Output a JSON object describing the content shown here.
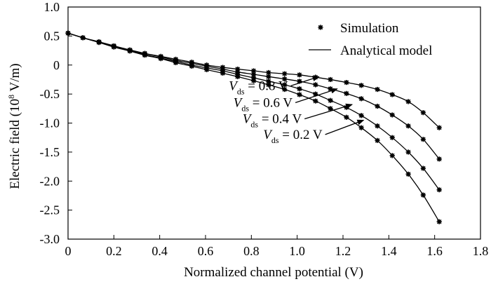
{
  "chart_data": {
    "type": "line",
    "xlabel": "Normalized channel potential (V)",
    "ylabel_parts": [
      "Electric field (10",
      "8",
      " V/m)"
    ],
    "xlim": [
      0,
      1.8
    ],
    "ylim": [
      -3.0,
      1.0
    ],
    "xticks": [
      "0",
      "0.2",
      "0.4",
      "0.6",
      "0.8",
      "1.0",
      "1.2",
      "1.4",
      "1.6",
      "1.8"
    ],
    "yticks": [
      "1.0",
      "0.5",
      "0",
      "-0.5",
      "-1.0",
      "-1.5",
      "-2.0",
      "-2.5",
      "-3.0"
    ],
    "xtick_values": [
      0,
      0.2,
      0.4,
      0.6,
      0.8,
      1.0,
      1.2,
      1.4,
      1.6,
      1.8
    ],
    "ytick_values": [
      1.0,
      0.5,
      0,
      -0.5,
      -1.0,
      -1.5,
      -2.0,
      -2.5,
      -3.0
    ],
    "grid": false,
    "legend": {
      "position": "top-right",
      "entries": [
        {
          "label": "Simulation",
          "style": "marker"
        },
        {
          "label": "Analytical model",
          "style": "line"
        }
      ]
    },
    "annotation_symbol": "V",
    "annotation_subscript": "ds",
    "series": [
      {
        "name_value": " = 0.8 V",
        "x": [
          0,
          0.065,
          0.135,
          0.2,
          0.27,
          0.335,
          0.405,
          0.47,
          0.54,
          0.605,
          0.675,
          0.74,
          0.81,
          0.875,
          0.945,
          1.01,
          1.08,
          1.145,
          1.215,
          1.28,
          1.35,
          1.415,
          1.485,
          1.55,
          1.62
        ],
        "y": [
          0.55,
          0.47,
          0.4,
          0.33,
          0.26,
          0.2,
          0.15,
          0.1,
          0.05,
          0.0,
          -0.04,
          -0.07,
          -0.1,
          -0.13,
          -0.15,
          -0.17,
          -0.21,
          -0.25,
          -0.3,
          -0.35,
          -0.42,
          -0.51,
          -0.63,
          -0.82,
          -1.08
        ]
      },
      {
        "name_value": " = 0.6 V",
        "x": [
          0,
          0.065,
          0.135,
          0.2,
          0.27,
          0.335,
          0.405,
          0.47,
          0.54,
          0.605,
          0.675,
          0.74,
          0.81,
          0.875,
          0.945,
          1.01,
          1.08,
          1.145,
          1.215,
          1.28,
          1.35,
          1.415,
          1.485,
          1.55,
          1.62
        ],
        "y": [
          0.55,
          0.47,
          0.4,
          0.33,
          0.26,
          0.2,
          0.14,
          0.08,
          0.03,
          -0.02,
          -0.07,
          -0.12,
          -0.16,
          -0.2,
          -0.24,
          -0.28,
          -0.34,
          -0.41,
          -0.49,
          -0.58,
          -0.71,
          -0.86,
          -1.05,
          -1.28,
          -1.62
        ]
      },
      {
        "name_value": " = 0.4 V",
        "x": [
          0,
          0.065,
          0.135,
          0.2,
          0.27,
          0.335,
          0.405,
          0.47,
          0.54,
          0.605,
          0.675,
          0.74,
          0.81,
          0.875,
          0.945,
          1.01,
          1.08,
          1.145,
          1.215,
          1.28,
          1.35,
          1.415,
          1.485,
          1.55,
          1.62
        ],
        "y": [
          0.55,
          0.47,
          0.39,
          0.32,
          0.25,
          0.18,
          0.12,
          0.06,
          0.0,
          -0.05,
          -0.1,
          -0.16,
          -0.22,
          -0.28,
          -0.34,
          -0.41,
          -0.5,
          -0.61,
          -0.73,
          -0.87,
          -1.05,
          -1.25,
          -1.5,
          -1.78,
          -2.15
        ]
      },
      {
        "name_value": " = 0.2 V",
        "x": [
          0,
          0.065,
          0.135,
          0.2,
          0.27,
          0.335,
          0.405,
          0.47,
          0.54,
          0.605,
          0.675,
          0.74,
          0.81,
          0.875,
          0.945,
          1.01,
          1.08,
          1.145,
          1.215,
          1.28,
          1.35,
          1.415,
          1.485,
          1.55,
          1.62
        ],
        "y": [
          0.55,
          0.47,
          0.39,
          0.31,
          0.24,
          0.17,
          0.11,
          0.04,
          -0.02,
          -0.08,
          -0.14,
          -0.2,
          -0.27,
          -0.34,
          -0.42,
          -0.51,
          -0.62,
          -0.75,
          -0.9,
          -1.08,
          -1.3,
          -1.56,
          -1.88,
          -2.24,
          -2.7
        ]
      }
    ],
    "annotations": [
      {
        "series_index": 0,
        "label_at": [
          0.96,
          -0.43
        ],
        "arrow_to": [
          1.095,
          -0.2
        ]
      },
      {
        "series_index": 1,
        "label_at": [
          0.98,
          -0.72
        ],
        "arrow_to": [
          1.175,
          -0.41
        ]
      },
      {
        "series_index": 2,
        "label_at": [
          1.02,
          -1.0
        ],
        "arrow_to": [
          1.24,
          -0.68
        ]
      },
      {
        "series_index": 3,
        "label_at": [
          1.11,
          -1.27
        ],
        "arrow_to": [
          1.29,
          -0.95
        ]
      }
    ]
  }
}
